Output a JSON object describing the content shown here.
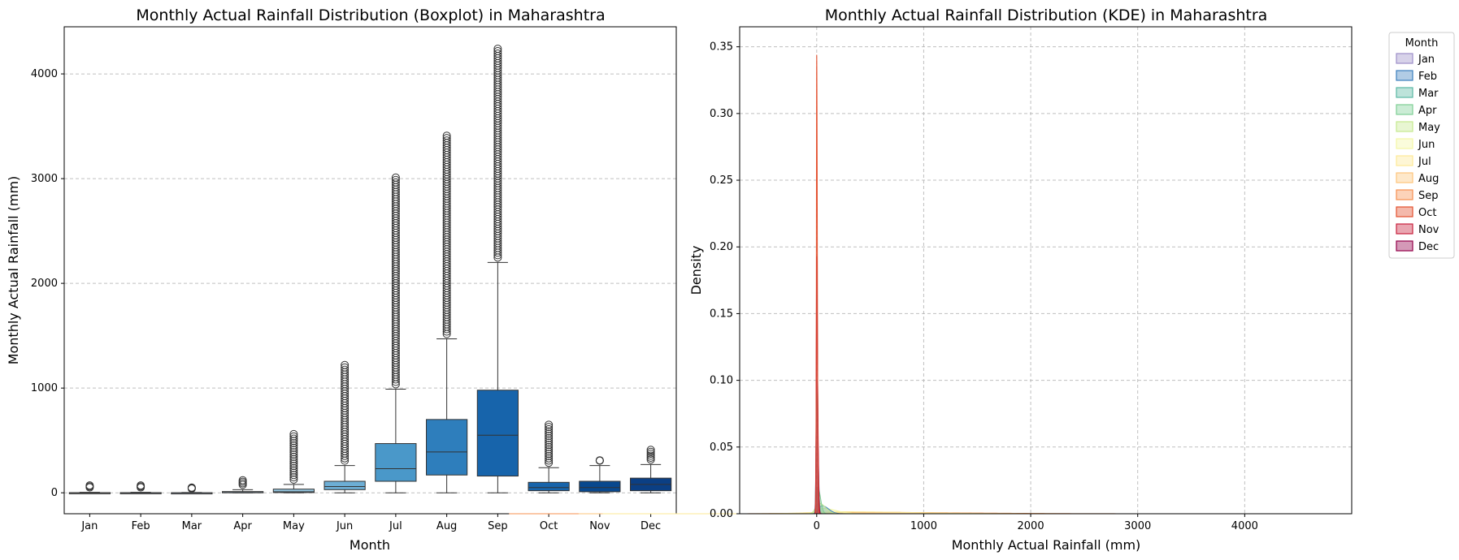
{
  "chart_data": [
    {
      "type": "boxplot",
      "title": "Monthly Actual Rainfall Distribution (Boxplot) in Maharashtra",
      "xlabel": "Month",
      "ylabel": "Monthly Actual Rainfall (mm)",
      "categories": [
        "Jan",
        "Feb",
        "Mar",
        "Apr",
        "May",
        "Jun",
        "Jul",
        "Aug",
        "Sep",
        "Oct",
        "Nov",
        "Dec"
      ],
      "ylim": [
        -200,
        4450
      ],
      "yticks": [
        0,
        1000,
        2000,
        3000,
        4000
      ],
      "grid": "y-dashed",
      "colors": [
        "#f7fbff",
        "#e3eef9",
        "#cfe1f2",
        "#b5d4e9",
        "#93c4de",
        "#6daed5",
        "#4a98c9",
        "#2e7ebc",
        "#1764ab",
        "#1764ab",
        "#08488e",
        "#0b3f84"
      ],
      "series": [
        {
          "name": "Jan",
          "q1": 0,
          "median": 0,
          "q3": 2,
          "whisker_low": 0,
          "whisker_high": 5,
          "outlier_max": 70
        },
        {
          "name": "Feb",
          "q1": 0,
          "median": 0,
          "q3": 2,
          "whisker_low": 0,
          "whisker_high": 5,
          "outlier_max": 70
        },
        {
          "name": "Mar",
          "q1": 0,
          "median": 0,
          "q3": 1,
          "whisker_low": 0,
          "whisker_high": 3,
          "outlier_max": 40
        },
        {
          "name": "Apr",
          "q1": 0,
          "median": 2,
          "q3": 12,
          "whisker_low": 0,
          "whisker_high": 30,
          "outlier_max": 120
        },
        {
          "name": "May",
          "q1": 2,
          "median": 10,
          "q3": 35,
          "whisker_low": 0,
          "whisker_high": 80,
          "outlier_max": 560
        },
        {
          "name": "Jun",
          "q1": 30,
          "median": 60,
          "q3": 110,
          "whisker_low": 0,
          "whisker_high": 260,
          "outlier_max": 1220
        },
        {
          "name": "Jul",
          "q1": 110,
          "median": 230,
          "q3": 470,
          "whisker_low": 0,
          "whisker_high": 990,
          "outlier_max": 3010
        },
        {
          "name": "Aug",
          "q1": 170,
          "median": 390,
          "q3": 700,
          "whisker_low": 0,
          "whisker_high": 1470,
          "outlier_max": 3410
        },
        {
          "name": "Sep",
          "q1": 160,
          "median": 550,
          "q3": 980,
          "whisker_low": 0,
          "whisker_high": 2200,
          "outlier_max": 4240
        },
        {
          "name": "Oct",
          "q1": 20,
          "median": 50,
          "q3": 100,
          "whisker_low": 0,
          "whisker_high": 240,
          "outlier_max": 650
        },
        {
          "name": "Nov",
          "q1": 10,
          "median": 50,
          "q3": 110,
          "whisker_low": 0,
          "whisker_high": 260,
          "outlier_max": 310
        },
        {
          "name": "Dec",
          "q1": 20,
          "median": 80,
          "q3": 140,
          "whisker_low": 0,
          "whisker_high": 270,
          "outlier_max": 410
        }
      ]
    },
    {
      "type": "kde",
      "title": "Monthly Actual Rainfall Distribution (KDE) in Maharashtra",
      "xlabel": "Monthly Actual Rainfall (mm)",
      "ylabel": "Density",
      "xlim": [
        -720,
        5000
      ],
      "ylim": [
        0,
        0.365
      ],
      "xticks": [
        0,
        1000,
        2000,
        3000,
        4000
      ],
      "yticks": [
        0.0,
        0.05,
        0.1,
        0.15,
        0.2,
        0.25,
        0.3,
        0.35
      ],
      "ytick_labels": [
        "0.00",
        "0.05",
        "0.10",
        "0.15",
        "0.20",
        "0.25",
        "0.30",
        "0.35"
      ],
      "grid": "both-dashed",
      "legend": {
        "title": "Month",
        "placement": "outside-upper-right",
        "entries": [
          {
            "label": "Jan",
            "color": "#9c8ec9"
          },
          {
            "label": "Feb",
            "color": "#3c80bd"
          },
          {
            "label": "Mar",
            "color": "#59b8a3"
          },
          {
            "label": "Apr",
            "color": "#7ecf95"
          },
          {
            "label": "May",
            "color": "#c5e88e"
          },
          {
            "label": "Jun",
            "color": "#f3f7a5"
          },
          {
            "label": "Jul",
            "color": "#fde896"
          },
          {
            "label": "Aug",
            "color": "#fdc57b"
          },
          {
            "label": "Sep",
            "color": "#f7904f"
          },
          {
            "label": "Oct",
            "color": "#e4502e"
          },
          {
            "label": "Nov",
            "color": "#c8203c"
          },
          {
            "label": "Dec",
            "color": "#94004a"
          }
        ]
      },
      "series": [
        {
          "name": "Oct",
          "peak_x": 0,
          "peak_density": 0.344,
          "spread": 6
        },
        {
          "name": "Dec",
          "peak_x": 0,
          "peak_density": 0.193,
          "spread": 8
        },
        {
          "name": "Nov",
          "peak_x": 0,
          "peak_density": 0.15,
          "spread": 10
        },
        {
          "name": "Jan",
          "peak_x": 0,
          "peak_density": 0.1,
          "spread": 12
        },
        {
          "name": "Mar",
          "peak_x": 0,
          "peak_density": 0.09,
          "spread": 12
        },
        {
          "name": "Feb",
          "peak_x": 50,
          "peak_density": 0.006,
          "spread": 60
        },
        {
          "name": "Apr",
          "peak_x": 10,
          "peak_density": 0.02,
          "spread": 25
        },
        {
          "name": "May",
          "peak_x": 20,
          "peak_density": 0.008,
          "spread": 60
        },
        {
          "name": "Jun",
          "peak_x": 60,
          "peak_density": 0.004,
          "spread": 120
        },
        {
          "name": "Jul",
          "peak_x": 250,
          "peak_density": 0.0015,
          "spread": 600
        },
        {
          "name": "Aug",
          "peak_x": 400,
          "peak_density": 0.0012,
          "spread": 700
        },
        {
          "name": "Sep",
          "peak_x": 500,
          "peak_density": 0.001,
          "spread": 900
        }
      ]
    }
  ]
}
